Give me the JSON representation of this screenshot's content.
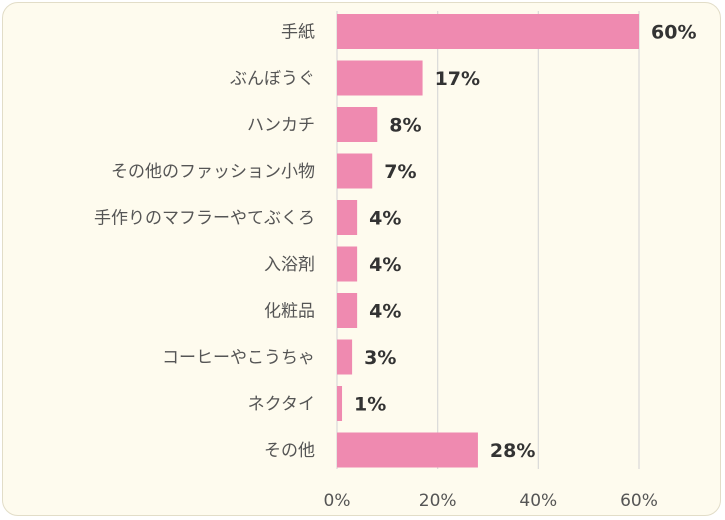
{
  "chart_data": {
    "type": "bar",
    "orientation": "horizontal",
    "categories": [
      "手紙",
      "ぶんぼうぐ",
      "ハンカチ",
      "その他のファッション小物",
      "手作りのマフラーやてぶくろ",
      "入浴剤",
      "化粧品",
      "コーヒーやこうちゃ",
      "ネクタイ",
      "その他"
    ],
    "values": [
      60,
      17,
      8,
      7,
      4,
      4,
      4,
      3,
      1,
      28
    ],
    "value_labels": [
      "60%",
      "17%",
      "8%",
      "7%",
      "4%",
      "4%",
      "4%",
      "3%",
      "1%",
      "28%"
    ],
    "xlim": [
      0,
      60
    ],
    "x_ticks": [
      0,
      20,
      40,
      60
    ],
    "x_tick_labels": [
      "0%",
      "20%",
      "40%",
      "60%"
    ],
    "grid": true,
    "bar_color": "#ef8ab0",
    "grid_color": "#d9d9d9"
  }
}
